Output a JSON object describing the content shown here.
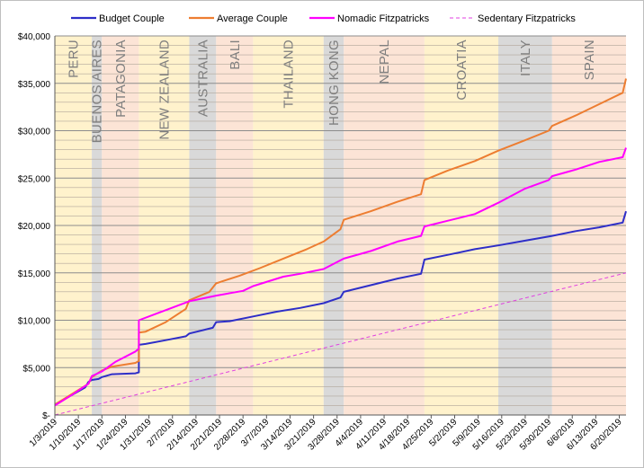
{
  "chart_data": {
    "type": "line",
    "title": "",
    "xlabel": "",
    "ylabel": "",
    "x_range": [
      "2019-01-03",
      "2019-06-22"
    ],
    "ylim": [
      0,
      40000
    ],
    "y_ticks": [
      {
        "value": 0,
        "label": "$-"
      },
      {
        "value": 5000,
        "label": "$5,000"
      },
      {
        "value": 10000,
        "label": "$10,000"
      },
      {
        "value": 15000,
        "label": "$15,000"
      },
      {
        "value": 20000,
        "label": "$20,000"
      },
      {
        "value": 25000,
        "label": "$25,000"
      },
      {
        "value": 30000,
        "label": "$30,000"
      },
      {
        "value": 35000,
        "label": "$35,000"
      },
      {
        "value": 40000,
        "label": "$40,000"
      }
    ],
    "x_ticks": [
      {
        "date": "2019-01-03",
        "label": "1/3/2019"
      },
      {
        "date": "2019-01-10",
        "label": "1/10/2019"
      },
      {
        "date": "2019-01-17",
        "label": "1/17/2019"
      },
      {
        "date": "2019-01-24",
        "label": "1/24/2019"
      },
      {
        "date": "2019-01-31",
        "label": "1/31/2019"
      },
      {
        "date": "2019-02-07",
        "label": "2/7/2019"
      },
      {
        "date": "2019-02-14",
        "label": "2/14/2019"
      },
      {
        "date": "2019-02-21",
        "label": "2/21/2019"
      },
      {
        "date": "2019-02-28",
        "label": "2/28/2019"
      },
      {
        "date": "2019-03-07",
        "label": "3/7/2019"
      },
      {
        "date": "2019-03-14",
        "label": "3/14/2019"
      },
      {
        "date": "2019-03-21",
        "label": "3/21/2019"
      },
      {
        "date": "2019-03-28",
        "label": "3/28/2019"
      },
      {
        "date": "2019-04-04",
        "label": "4/4/2019"
      },
      {
        "date": "2019-04-11",
        "label": "4/11/2019"
      },
      {
        "date": "2019-04-18",
        "label": "4/18/2019"
      },
      {
        "date": "2019-04-25",
        "label": "4/25/2019"
      },
      {
        "date": "2019-05-02",
        "label": "5/2/2019"
      },
      {
        "date": "2019-05-09",
        "label": "5/9/2019"
      },
      {
        "date": "2019-05-16",
        "label": "5/16/2019"
      },
      {
        "date": "2019-05-23",
        "label": "5/23/2019"
      },
      {
        "date": "2019-05-30",
        "label": "5/30/2019"
      },
      {
        "date": "2019-06-06",
        "label": "6/6/2019"
      },
      {
        "date": "2019-06-13",
        "label": "6/13/2019"
      },
      {
        "date": "2019-06-20",
        "label": "6/20/2019"
      }
    ],
    "grid": true,
    "legend_position": "top",
    "regions": [
      {
        "label": "PERU",
        "start": "2019-01-03",
        "end": "2019-01-14",
        "color": "#fff2cc"
      },
      {
        "label": "BUENOS AIRES",
        "start": "2019-01-14",
        "end": "2019-01-17",
        "color": "#d9d9d9"
      },
      {
        "label": "PATAGONIA",
        "start": "2019-01-17",
        "end": "2019-01-28",
        "color": "#fce4d6"
      },
      {
        "label": "NEW ZEALAND",
        "start": "2019-01-28",
        "end": "2019-02-12",
        "color": "#fff2cc"
      },
      {
        "label": "AUSTRALIA",
        "start": "2019-02-12",
        "end": "2019-02-20",
        "color": "#d9d9d9"
      },
      {
        "label": "BALI",
        "start": "2019-02-20",
        "end": "2019-03-03",
        "color": "#fce4d6"
      },
      {
        "label": "THAILAND",
        "start": "2019-03-03",
        "end": "2019-03-24",
        "color": "#fff2cc"
      },
      {
        "label": "HONG KONG",
        "start": "2019-03-24",
        "end": "2019-03-30",
        "color": "#d9d9d9"
      },
      {
        "label": "NEPAL",
        "start": "2019-03-30",
        "end": "2019-04-23",
        "color": "#fce4d6"
      },
      {
        "label": "CROATIA",
        "start": "2019-04-23",
        "end": "2019-05-15",
        "color": "#fff2cc"
      },
      {
        "label": "ITALY",
        "start": "2019-05-15",
        "end": "2019-05-31",
        "color": "#d9d9d9"
      },
      {
        "label": "SPAIN",
        "start": "2019-05-31",
        "end": "2019-06-22",
        "color": "#fce4d6"
      }
    ],
    "series": [
      {
        "name": "Budget Couple",
        "color": "#2e2ec8",
        "style": "solid",
        "points": [
          [
            "2019-01-03",
            1100
          ],
          [
            "2019-01-07",
            1900
          ],
          [
            "2019-01-12",
            2900
          ],
          [
            "2019-01-13",
            3500
          ],
          [
            "2019-01-14",
            3700
          ],
          [
            "2019-01-16",
            3800
          ],
          [
            "2019-01-17",
            4000
          ],
          [
            "2019-01-20",
            4300
          ],
          [
            "2019-01-27",
            4400
          ],
          [
            "2019-01-28",
            4500
          ],
          [
            "2019-01-28",
            7400
          ],
          [
            "2019-01-30",
            7500
          ],
          [
            "2019-02-05",
            7900
          ],
          [
            "2019-02-11",
            8300
          ],
          [
            "2019-02-12",
            8600
          ],
          [
            "2019-02-19",
            9200
          ],
          [
            "2019-02-20",
            9800
          ],
          [
            "2019-02-24",
            9900
          ],
          [
            "2019-03-03",
            10400
          ],
          [
            "2019-03-10",
            10900
          ],
          [
            "2019-03-17",
            11300
          ],
          [
            "2019-03-24",
            11800
          ],
          [
            "2019-03-29",
            12400
          ],
          [
            "2019-03-30",
            13000
          ],
          [
            "2019-04-07",
            13700
          ],
          [
            "2019-04-15",
            14400
          ],
          [
            "2019-04-22",
            14900
          ],
          [
            "2019-04-23",
            16400
          ],
          [
            "2019-04-30",
            16900
          ],
          [
            "2019-05-08",
            17500
          ],
          [
            "2019-05-15",
            17900
          ],
          [
            "2019-05-23",
            18400
          ],
          [
            "2019-05-31",
            18900
          ],
          [
            "2019-06-07",
            19400
          ],
          [
            "2019-06-14",
            19800
          ],
          [
            "2019-06-21",
            20300
          ],
          [
            "2019-06-22",
            21500
          ]
        ]
      },
      {
        "name": "Average Couple",
        "color": "#ed7d31",
        "style": "solid",
        "points": [
          [
            "2019-01-03",
            1100
          ],
          [
            "2019-01-08",
            2200
          ],
          [
            "2019-01-13",
            3300
          ],
          [
            "2019-01-14",
            4000
          ],
          [
            "2019-01-17",
            4700
          ],
          [
            "2019-01-20",
            5100
          ],
          [
            "2019-01-27",
            5500
          ],
          [
            "2019-01-28",
            5700
          ],
          [
            "2019-01-28",
            8700
          ],
          [
            "2019-01-30",
            8800
          ],
          [
            "2019-02-05",
            9800
          ],
          [
            "2019-02-11",
            11200
          ],
          [
            "2019-02-12",
            12100
          ],
          [
            "2019-02-18",
            13000
          ],
          [
            "2019-02-20",
            13900
          ],
          [
            "2019-02-27",
            14700
          ],
          [
            "2019-03-05",
            15500
          ],
          [
            "2019-03-12",
            16500
          ],
          [
            "2019-03-19",
            17500
          ],
          [
            "2019-03-24",
            18300
          ],
          [
            "2019-03-29",
            19600
          ],
          [
            "2019-03-30",
            20600
          ],
          [
            "2019-04-07",
            21500
          ],
          [
            "2019-04-15",
            22500
          ],
          [
            "2019-04-22",
            23300
          ],
          [
            "2019-04-23",
            24800
          ],
          [
            "2019-04-30",
            25800
          ],
          [
            "2019-05-08",
            26800
          ],
          [
            "2019-05-15",
            27900
          ],
          [
            "2019-05-23",
            29000
          ],
          [
            "2019-05-30",
            30000
          ],
          [
            "2019-05-31",
            30500
          ],
          [
            "2019-06-07",
            31600
          ],
          [
            "2019-06-14",
            32800
          ],
          [
            "2019-06-21",
            34000
          ],
          [
            "2019-06-22",
            35500
          ]
        ]
      },
      {
        "name": "Nomadic Fitzpatricks",
        "color": "#ff00ff",
        "style": "solid",
        "points": [
          [
            "2019-01-03",
            1000
          ],
          [
            "2019-01-08",
            2100
          ],
          [
            "2019-01-13",
            3300
          ],
          [
            "2019-01-14",
            4100
          ],
          [
            "2019-01-17",
            4600
          ],
          [
            "2019-01-21",
            5600
          ],
          [
            "2019-01-27",
            6700
          ],
          [
            "2019-01-28",
            7000
          ],
          [
            "2019-01-28",
            10000
          ],
          [
            "2019-02-03",
            10800
          ],
          [
            "2019-02-12",
            12000
          ],
          [
            "2019-02-20",
            12600
          ],
          [
            "2019-02-28",
            13100
          ],
          [
            "2019-03-03",
            13600
          ],
          [
            "2019-03-12",
            14600
          ],
          [
            "2019-03-17",
            14900
          ],
          [
            "2019-03-24",
            15400
          ],
          [
            "2019-03-30",
            16500
          ],
          [
            "2019-04-07",
            17300
          ],
          [
            "2019-04-15",
            18300
          ],
          [
            "2019-04-22",
            18900
          ],
          [
            "2019-04-23",
            19900
          ],
          [
            "2019-04-30",
            20500
          ],
          [
            "2019-05-08",
            21200
          ],
          [
            "2019-05-15",
            22400
          ],
          [
            "2019-05-23",
            23900
          ],
          [
            "2019-05-30",
            24800
          ],
          [
            "2019-05-31",
            25200
          ],
          [
            "2019-06-07",
            25900
          ],
          [
            "2019-06-14",
            26700
          ],
          [
            "2019-06-21",
            27200
          ],
          [
            "2019-06-22",
            28200
          ]
        ]
      },
      {
        "name": "Sedentary Fitzpatricks",
        "color": "#e040e0",
        "style": "dashed",
        "points": [
          [
            "2019-01-03",
            0
          ],
          [
            "2019-06-22",
            15000
          ]
        ]
      }
    ]
  }
}
